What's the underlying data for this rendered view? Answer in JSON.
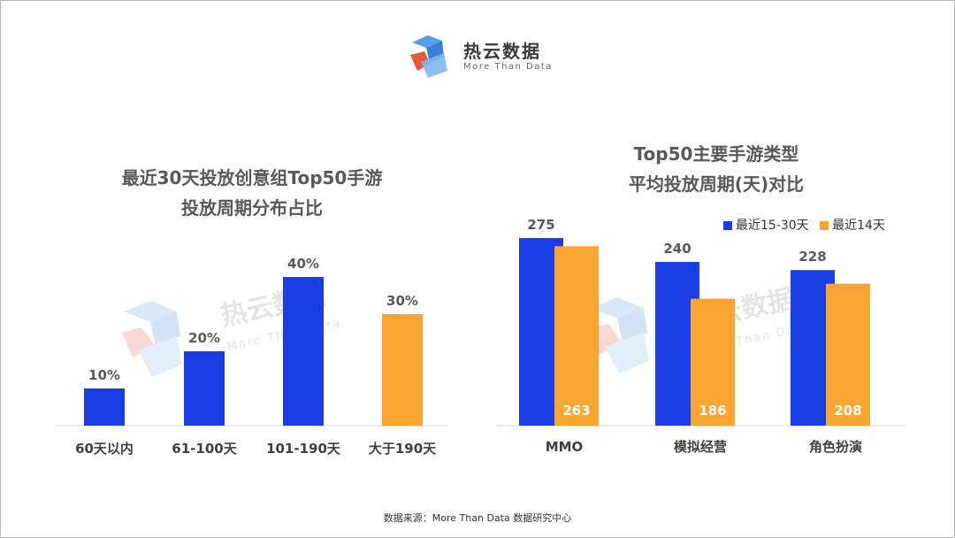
{
  "brand": {
    "name": "热云数据",
    "tagline": "More Than Data"
  },
  "colors": {
    "blue": "#1b3de6",
    "orange": "#f9a532",
    "title": "#595959"
  },
  "footer": {
    "source": "数据来源：More Than Data 数据研究中心"
  },
  "chart_data": [
    {
      "type": "bar",
      "title_lines": [
        "最近30天投放创意组Top50手游",
        "投放周期分布占比"
      ],
      "categories": [
        "60天以内",
        "61-100天",
        "101-190天",
        "大于190天"
      ],
      "values": [
        10,
        20,
        40,
        30
      ],
      "value_labels": [
        "10%",
        "20%",
        "40%",
        "30%"
      ],
      "bar_colors": [
        "#1b3de6",
        "#1b3de6",
        "#1b3de6",
        "#f9a532"
      ],
      "unit": "%",
      "ylim": [
        0,
        40
      ],
      "grid": false
    },
    {
      "type": "bar",
      "title_lines": [
        "Top50主要手游类型",
        "平均投放周期(天)对比"
      ],
      "categories": [
        "MMO",
        "模拟经营",
        "角色扮演"
      ],
      "series": [
        {
          "name": "最近15-30天",
          "values": [
            275,
            240,
            228
          ],
          "color": "#1b3de6"
        },
        {
          "name": "最近14天",
          "values": [
            263,
            186,
            208
          ],
          "color": "#f9a532"
        }
      ],
      "ylim": [
        0,
        275
      ],
      "legend": "top-right",
      "grid": false
    }
  ]
}
